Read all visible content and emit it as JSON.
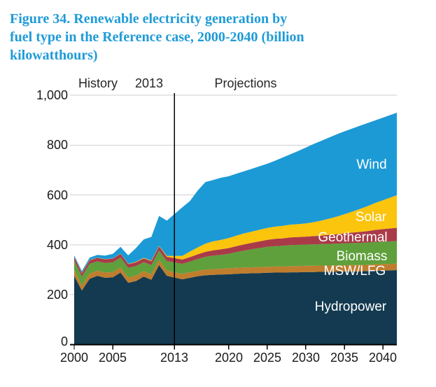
{
  "figure": {
    "title_lines": [
      "Figure 34. Renewable electricity generation by",
      "fuel type in the Reference case, 2000-2040 (billion",
      "kilowatthours)"
    ],
    "title_color": "#1F9BD8"
  },
  "header": {
    "history": "History",
    "divider_year": "2013",
    "projections": "Projections"
  },
  "chart_data": {
    "type": "area",
    "stacked": true,
    "unit": "billion kilowatthours",
    "x_years": [
      2000,
      2001,
      2002,
      2003,
      2004,
      2005,
      2006,
      2007,
      2008,
      2009,
      2010,
      2011,
      2012,
      2013,
      2014,
      2015,
      2016,
      2017,
      2018,
      2019,
      2020,
      2021,
      2022,
      2023,
      2024,
      2025,
      2026,
      2027,
      2028,
      2029,
      2030,
      2031,
      2032,
      2033,
      2034,
      2035,
      2036,
      2037,
      2038,
      2039,
      2040
    ],
    "series": [
      {
        "name": "Hydropower",
        "color": "#133A50",
        "values": [
          276,
          217,
          264,
          276,
          268,
          270,
          289,
          248,
          255,
          273,
          260,
          319,
          276,
          269,
          262,
          268,
          274,
          278,
          280,
          281,
          282,
          284,
          285,
          286,
          287,
          288,
          289,
          289,
          290,
          290,
          291,
          291,
          292,
          292,
          293,
          293,
          294,
          294,
          295,
          296,
          297
        ]
      },
      {
        "name": "MSW/LFG",
        "color": "#BF7D2E",
        "values": [
          23,
          21,
          21,
          21,
          21,
          21,
          21,
          21,
          22,
          22,
          22,
          21,
          21,
          21,
          22,
          22,
          22,
          23,
          23,
          23,
          24,
          24,
          24,
          24,
          24,
          24,
          24,
          24,
          25,
          25,
          25,
          25,
          25,
          25,
          25,
          25,
          25,
          25,
          25,
          26,
          26
        ]
      },
      {
        "name": "Biomass",
        "color": "#5FA03C",
        "values": [
          38,
          35,
          39,
          37,
          38,
          39,
          39,
          39,
          38,
          36,
          37,
          37,
          38,
          40,
          40,
          43,
          47,
          51,
          54,
          56,
          58,
          63,
          68,
          72,
          76,
          80,
          82,
          83,
          84,
          85,
          85,
          86,
          86,
          87,
          87,
          88,
          88,
          89,
          89,
          90,
          90
        ]
      },
      {
        "name": "Geothermal",
        "color": "#A93B49",
        "values": [
          14,
          14,
          14,
          14,
          15,
          15,
          15,
          15,
          15,
          15,
          16,
          17,
          17,
          17,
          17,
          18,
          19,
          20,
          21,
          22,
          23,
          24,
          25,
          26,
          27,
          28,
          29,
          30,
          31,
          31,
          32,
          33,
          34,
          36,
          38,
          40,
          42,
          44,
          46,
          48,
          50
        ]
      },
      {
        "name": "Solar",
        "color": "#FBC40D",
        "values": [
          1,
          1,
          1,
          1,
          1,
          1,
          1,
          1,
          2,
          2,
          2,
          2,
          4,
          9,
          15,
          22,
          28,
          33,
          36,
          38,
          40,
          42,
          44,
          45,
          47,
          48,
          49,
          50,
          51,
          52,
          53,
          56,
          60,
          65,
          70,
          77,
          84,
          92,
          100,
          108,
          116
        ]
      },
      {
        "name": "Wind",
        "color": "#1C9AD5",
        "values": [
          6,
          7,
          10,
          11,
          14,
          18,
          27,
          34,
          55,
          74,
          95,
          120,
          141,
          168,
          194,
          203,
          228,
          247,
          246,
          249,
          248,
          248,
          249,
          252,
          254,
          257,
          264,
          274,
          282,
          293,
          304,
          313,
          320,
          325,
          330,
          332,
          333,
          333,
          333,
          331,
          331
        ]
      }
    ],
    "ylim": [
      0,
      1000
    ],
    "yticks": [
      0,
      200,
      400,
      600,
      800,
      1000
    ],
    "ytick_labels": [
      "0",
      "200",
      "400",
      "600",
      "800",
      "1,000"
    ],
    "xtick_years": [
      2000,
      2005,
      2013,
      2020,
      2025,
      2030,
      2035,
      2040
    ],
    "xtick_labels": [
      "2000",
      "2005",
      "2013",
      "2020",
      "2025",
      "2030",
      "2035",
      "2040"
    ],
    "vline_year": 2013,
    "grid": true,
    "grid_color": "#CFCFCF",
    "axis_color": "#000000",
    "series_label_color": "#FFFFFF",
    "legend_position": "inline-labels"
  }
}
